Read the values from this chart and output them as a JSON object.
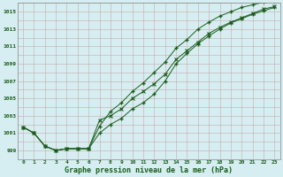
{
  "xlabel": "Graphe pression niveau de la mer (hPa)",
  "ylim": [
    998.0,
    1016.0
  ],
  "xlim": [
    -0.5,
    23.5
  ],
  "yticks": [
    999,
    1001,
    1003,
    1005,
    1007,
    1009,
    1011,
    1013,
    1015
  ],
  "xticks": [
    0,
    1,
    2,
    3,
    4,
    5,
    6,
    7,
    8,
    9,
    10,
    11,
    12,
    13,
    14,
    15,
    16,
    17,
    18,
    19,
    20,
    21,
    22,
    23
  ],
  "background_color": "#d6eef2",
  "grid_color": "#c8a8a8",
  "line_color": "#1a5c1a",
  "series1": [
    1001.7,
    1001.0,
    999.5,
    999.0,
    999.2,
    999.2,
    999.2,
    1002.5,
    1003.0,
    1003.8,
    1005.0,
    1005.8,
    1006.7,
    1007.8,
    1009.5,
    1010.5,
    1011.5,
    1012.5,
    1013.2,
    1013.8,
    1014.3,
    1014.8,
    1015.3,
    1015.6
  ],
  "series2": [
    1001.7,
    1001.0,
    999.5,
    999.0,
    999.2,
    999.2,
    999.2,
    1001.0,
    1002.0,
    1002.7,
    1003.8,
    1004.5,
    1005.5,
    1007.0,
    1009.0,
    1010.2,
    1011.3,
    1012.2,
    1013.0,
    1013.7,
    1014.2,
    1014.7,
    1015.1,
    1015.5
  ],
  "series3": [
    1001.7,
    1001.0,
    999.5,
    999.0,
    999.2,
    999.2,
    999.2,
    1001.8,
    1003.5,
    1004.5,
    1005.8,
    1006.8,
    1008.0,
    1009.2,
    1010.8,
    1011.8,
    1013.0,
    1013.8,
    1014.5,
    1015.0,
    1015.5,
    1015.8,
    1016.1,
    1016.3
  ]
}
